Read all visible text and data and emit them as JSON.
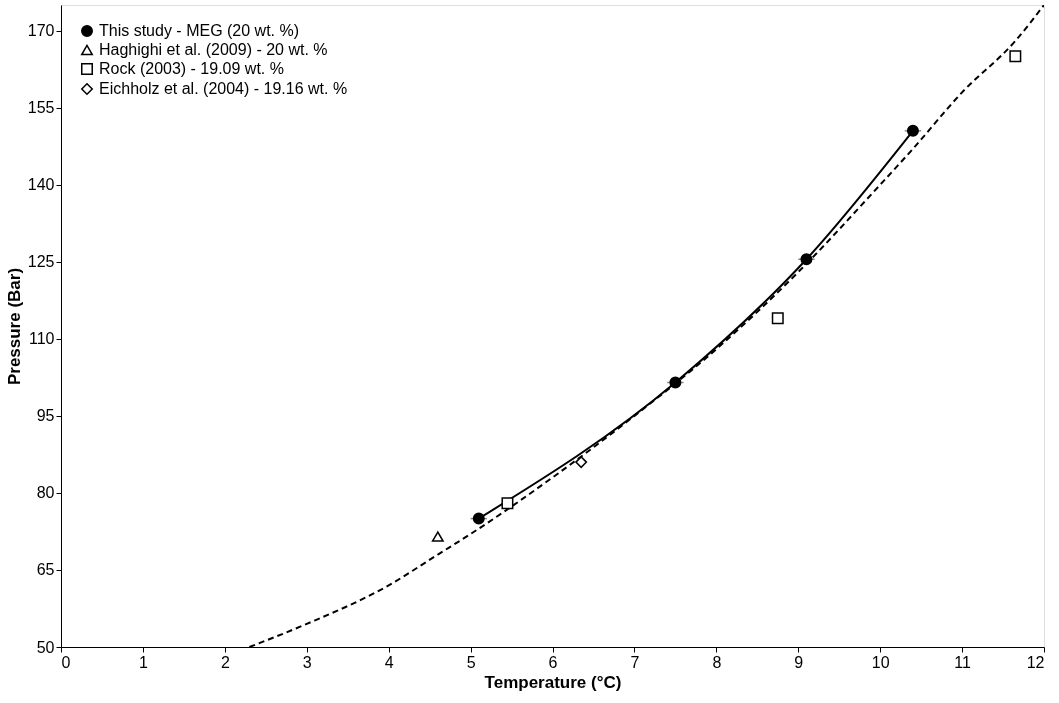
{
  "chart_data": {
    "type": "scatter",
    "xlabel": "Temperature (°C)",
    "ylabel": "Pressure (Bar)",
    "xlim": [
      0,
      12
    ],
    "xticks": [
      0,
      1,
      2,
      3,
      4,
      5,
      6,
      7,
      8,
      9,
      10,
      11,
      12
    ],
    "ylim": [
      50,
      175
    ],
    "yticks": [
      50,
      65,
      80,
      95,
      110,
      125,
      140,
      155,
      170
    ],
    "grid": false,
    "legend": "top left",
    "series": [
      {
        "name": "This study - MEG (20 wt. %)",
        "type": "line",
        "marker": "circle",
        "line_style": "solid",
        "color": "#000000",
        "x": [
          5.1,
          7.5,
          9.1,
          10.4
        ],
        "values": [
          75,
          101.5,
          125.5,
          150.5
        ],
        "xerrors": [
          0.1,
          0.1,
          0.1,
          0.1
        ]
      },
      {
        "name": "Haghighi et al. (2009) - 20 wt. %",
        "type": "scatter",
        "marker": "triangle",
        "color": "#000000",
        "x": [
          4.6
        ],
        "values": [
          71.5
        ]
      },
      {
        "name": "Rock (2003) - 19.09 wt. %",
        "type": "scatter",
        "marker": "square",
        "color": "#000000",
        "x": [
          5.45,
          8.75,
          11.65
        ],
        "values": [
          78,
          114,
          165
        ]
      },
      {
        "name": "Eichholz et al. (2004) - 19.16 wt. %",
        "type": "scatter",
        "marker": "diamond",
        "color": "#000000",
        "x": [
          6.35
        ],
        "values": [
          86
        ]
      },
      {
        "type": "line",
        "marker": "none",
        "line_style": "dashed",
        "color": "#000000",
        "x": [
          2.3,
          3,
          4,
          4.6,
          5,
          6,
          7,
          8,
          9,
          10,
          10.4,
          11,
          11.65,
          12
        ],
        "values": [
          50,
          54.5,
          62,
          68,
          72,
          83,
          95,
          108,
          123,
          140,
          147,
          158,
          168,
          175
        ]
      }
    ]
  }
}
